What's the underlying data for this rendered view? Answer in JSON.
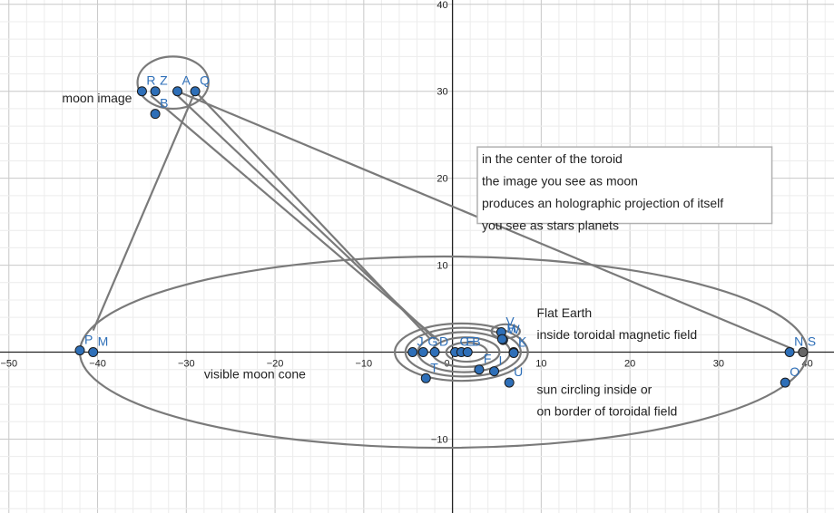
{
  "chart_data": {
    "type": "scatter",
    "grid": true,
    "xlim": [
      -51,
      43
    ],
    "ylim": [
      -18.5,
      40.5
    ],
    "x_ticks": [
      -50,
      -40,
      -30,
      -20,
      -10,
      0,
      10,
      20,
      30,
      40
    ],
    "y_ticks": [
      40,
      30,
      20,
      10,
      -10
    ],
    "x_tick_labels": [
      "−50",
      "−40",
      "−30",
      "−20",
      "−10",
      "0",
      "10",
      "20",
      "30",
      "40"
    ],
    "y_tick_labels": [
      "40",
      "30",
      "20",
      "10",
      "−10"
    ],
    "points": [
      {
        "label": "R",
        "x": -35,
        "y": 30,
        "color": "#2e6fb8"
      },
      {
        "label": "Z",
        "x": -33.5,
        "y": 30,
        "color": "#2e6fb8"
      },
      {
        "label": "A",
        "x": -31,
        "y": 30,
        "color": "#2e6fb8"
      },
      {
        "label": "Q",
        "x": -29,
        "y": 30,
        "color": "#2e6fb8"
      },
      {
        "label": "B",
        "x": -33.5,
        "y": 27.4,
        "color": "#2e6fb8"
      },
      {
        "label": "P",
        "x": -42,
        "y": 0.2,
        "color": "#2e6fb8"
      },
      {
        "label": "M",
        "x": -40.5,
        "y": 0,
        "color": "#2e6fb8"
      },
      {
        "label": "J",
        "x": -4.5,
        "y": 0,
        "color": "#2e6fb8"
      },
      {
        "label": "G",
        "x": -3.3,
        "y": 0,
        "color": "#2e6fb8"
      },
      {
        "label": "D",
        "x": -2,
        "y": 0,
        "color": "#2e6fb8"
      },
      {
        "label": "C",
        "x": 0.3,
        "y": 0,
        "color": "#2e6fb8"
      },
      {
        "label": "E",
        "x": 1,
        "y": 0,
        "color": "#2e6fb8"
      },
      {
        "label": "B",
        "x": 1.7,
        "y": 0,
        "color": "#2e6fb8"
      },
      {
        "label": "T",
        "x": -3,
        "y": -3,
        "color": "#2e6fb8"
      },
      {
        "label": "F",
        "x": 3,
        "y": -2,
        "color": "#2e6fb8"
      },
      {
        "label": "I",
        "x": 4.7,
        "y": -2.2,
        "color": "#2e6fb8"
      },
      {
        "label": "V",
        "x": 5.5,
        "y": 2.3,
        "color": "#2e6fb8"
      },
      {
        "label": "W",
        "x": 5.7,
        "y": 1.4,
        "color": "#2e6fb8"
      },
      {
        "label": "H",
        "x": 5.6,
        "y": 1.5,
        "color": "#2e6fb8"
      },
      {
        "label": "K",
        "x": 6.9,
        "y": 0,
        "color": "#2e6fb8"
      },
      {
        "label": "L",
        "x": 6.9,
        "y": -0.1,
        "color": "#2e6fb8"
      },
      {
        "label": "U",
        "x": 6.4,
        "y": -3.5,
        "color": "#2e6fb8"
      },
      {
        "label": "N",
        "x": 38,
        "y": 0,
        "color": "#2e6fb8"
      },
      {
        "label": "S",
        "x": 39.5,
        "y": 0,
        "color": "#666666"
      },
      {
        "label": "O",
        "x": 37.5,
        "y": -3.5,
        "color": "#2e6fb8"
      }
    ],
    "ellipses": [
      {
        "name": "toroidal-field",
        "cx": -1,
        "cy": 0,
        "rx": 41,
        "ry": 11
      },
      {
        "name": "moon-image-ring",
        "cx": -31.5,
        "cy": 31,
        "rx": 4,
        "ry": 3
      },
      {
        "name": "ring-outer",
        "cx": 1,
        "cy": 0,
        "rx": 7.5,
        "ry": 3.3
      },
      {
        "name": "ring-2",
        "cx": 1.2,
        "cy": 0,
        "rx": 6.5,
        "ry": 2.8
      },
      {
        "name": "ring-3",
        "cx": 1.3,
        "cy": 0,
        "rx": 5.2,
        "ry": 2.3
      },
      {
        "name": "ring-4",
        "cx": 1.5,
        "cy": 0,
        "rx": 3.8,
        "ry": 1.7
      },
      {
        "name": "ring-inner",
        "cx": 1.6,
        "cy": 0,
        "rx": 2.3,
        "ry": 1.1
      },
      {
        "name": "sun-ring",
        "cx": 6,
        "cy": 2.4,
        "rx": 1.6,
        "ry": 0.8
      }
    ],
    "segments": [
      {
        "x1": -29,
        "y1": 30,
        "x2": -40.5,
        "y2": 2.5
      },
      {
        "x1": -29,
        "y1": 30,
        "x2": -2.5,
        "y2": 1.5
      },
      {
        "x1": -31.5,
        "y1": 30,
        "x2": -2,
        "y2": 1.5
      },
      {
        "x1": -34,
        "y1": 29.5,
        "x2": -1.5,
        "y2": 1.3
      },
      {
        "x1": -31,
        "y1": 30,
        "x2": 38.5,
        "y2": 0.3
      }
    ],
    "annotations": [
      {
        "text": "moon image",
        "x": -44,
        "y": 28.7
      },
      {
        "text": "visible moon cone",
        "x": -28,
        "y": -3
      },
      {
        "text": "Flat Earth",
        "x": 9.5,
        "y": 4
      },
      {
        "text": "inside toroidal magnetic field",
        "x": 9.5,
        "y": 1.5
      },
      {
        "text": "sun circling inside or",
        "x": 9.5,
        "y": -4.8
      },
      {
        "text": "on border of toroidal field",
        "x": 9.5,
        "y": -7.3
      }
    ],
    "textbox": {
      "lines": [
        "in the center of the toroid",
        "the image you see as moon",
        "produces an holographic projection of itself",
        "you see as stars planets"
      ],
      "x": 2.8,
      "y": 23.6,
      "x2": 36,
      "y2": 14.8
    },
    "point_colors": {
      "fill": "#2e6fb8",
      "stroke": "#1a1a1a",
      "label": "#2e6fb8"
    },
    "curve_color": "#7a7a7a"
  }
}
